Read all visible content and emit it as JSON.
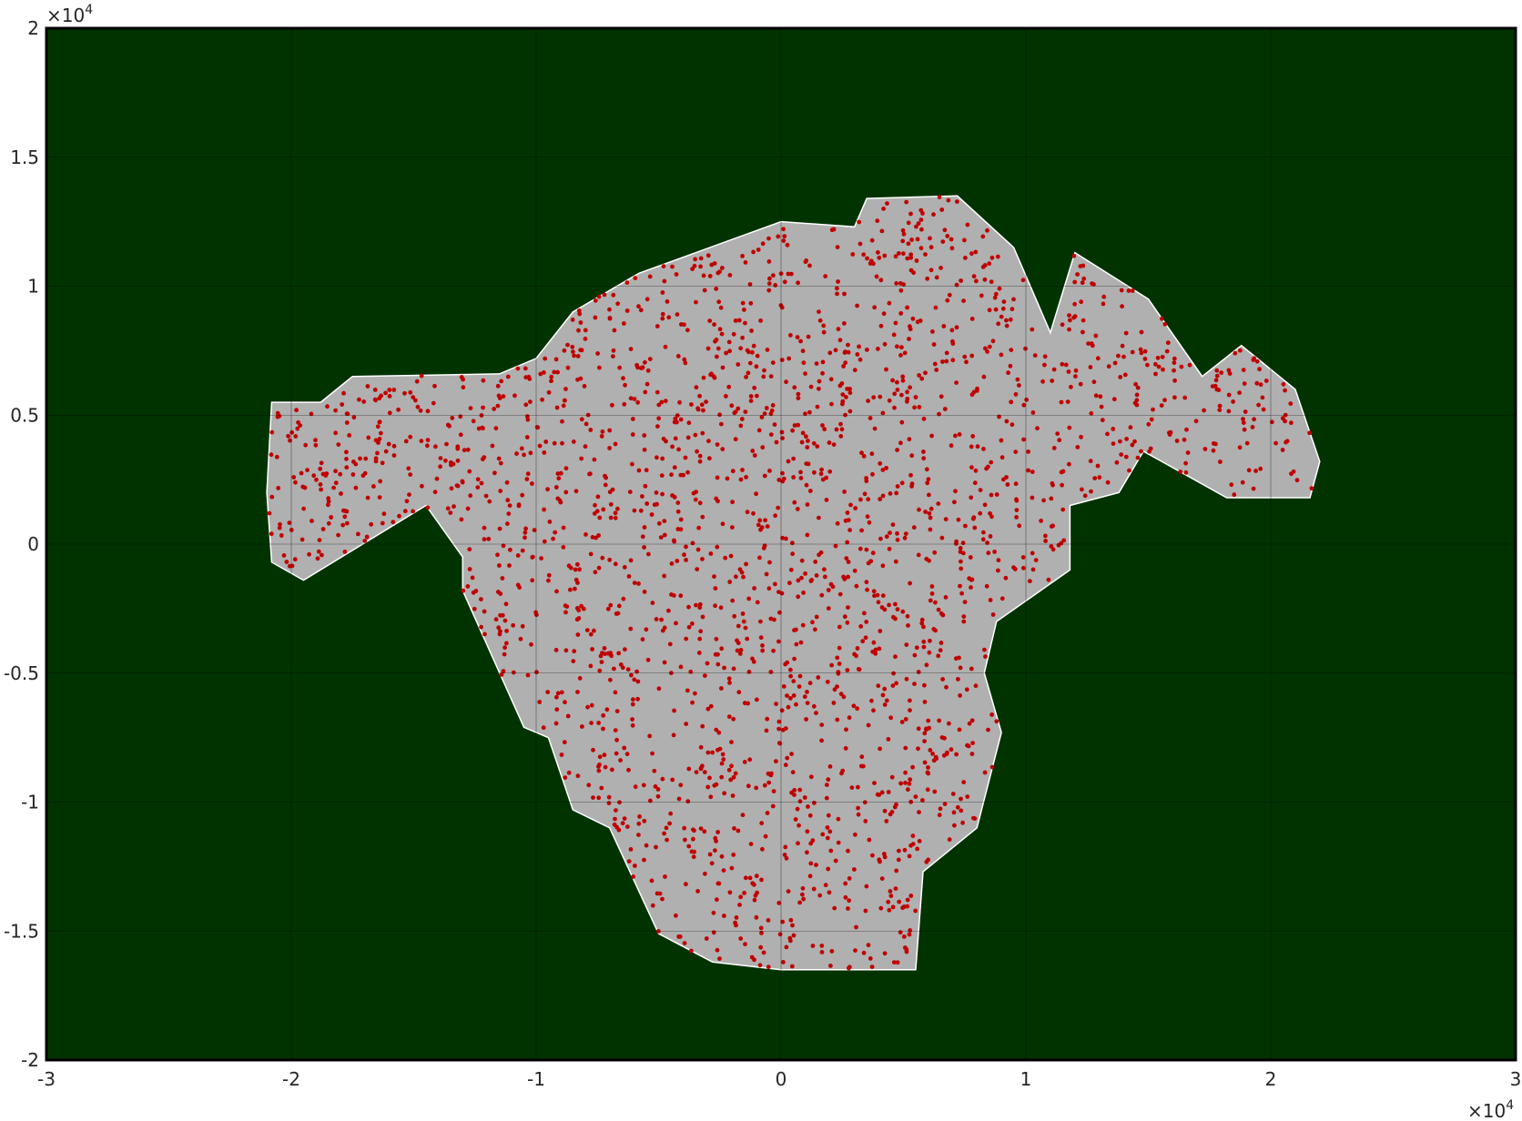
{
  "chart_data": {
    "type": "scatter",
    "xlim": [
      -30000,
      30000
    ],
    "ylim": [
      -20000,
      20000
    ],
    "x_ticks": [
      -30000,
      -20000,
      -10000,
      0,
      10000,
      20000,
      30000
    ],
    "y_ticks": [
      -20000,
      -15000,
      -10000,
      -5000,
      0,
      5000,
      10000,
      15000,
      20000
    ],
    "x_tick_labels": [
      "-3",
      "-2",
      "-1",
      "0",
      "1",
      "2",
      "3"
    ],
    "y_tick_labels": [
      "-2",
      "-1.5",
      "-1",
      "-0.5",
      "0",
      "0.5",
      "1",
      "1.5",
      "2"
    ],
    "x_exponent_label": {
      "base": "×10",
      "power": "4"
    },
    "y_exponent_label": {
      "base": "×10",
      "power": "4"
    },
    "grid": true,
    "colors": {
      "background": "#003300",
      "region_fill": "#b0b0b0",
      "points": "#c00000",
      "grid": "#000000",
      "axes_frame": "#000000"
    },
    "region_boundary": [
      [
        -20800,
        5500
      ],
      [
        -18800,
        5500
      ],
      [
        -17500,
        6500
      ],
      [
        -11500,
        6600
      ],
      [
        -10000,
        7200
      ],
      [
        -8500,
        9000
      ],
      [
        -5800,
        10500
      ],
      [
        0,
        12500
      ],
      [
        3000,
        12300
      ],
      [
        3500,
        13400
      ],
      [
        7200,
        13500
      ],
      [
        9500,
        11500
      ],
      [
        11000,
        8200
      ],
      [
        12000,
        11300
      ],
      [
        15000,
        9500
      ],
      [
        17200,
        6500
      ],
      [
        18800,
        7700
      ],
      [
        21000,
        6000
      ],
      [
        22000,
        3200
      ],
      [
        21600,
        1800
      ],
      [
        18200,
        1800
      ],
      [
        14800,
        3600
      ],
      [
        13800,
        2000
      ],
      [
        11800,
        1500
      ],
      [
        11800,
        -1000
      ],
      [
        8800,
        -3000
      ],
      [
        8300,
        -5000
      ],
      [
        9000,
        -7300
      ],
      [
        8000,
        -11000
      ],
      [
        5800,
        -12700
      ],
      [
        5500,
        -16500
      ],
      [
        0,
        -16500
      ],
      [
        -2800,
        -16200
      ],
      [
        -5000,
        -15100
      ],
      [
        -7000,
        -11000
      ],
      [
        -8500,
        -10300
      ],
      [
        -9500,
        -7500
      ],
      [
        -10500,
        -7100
      ],
      [
        -13000,
        -1800
      ],
      [
        -13000,
        -500
      ],
      [
        -14500,
        1500
      ],
      [
        -19500,
        -1400
      ],
      [
        -20800,
        -700
      ],
      [
        -21000,
        2000
      ]
    ],
    "points": {
      "count": 2200,
      "seed": 20240517,
      "description_free": true
    }
  }
}
